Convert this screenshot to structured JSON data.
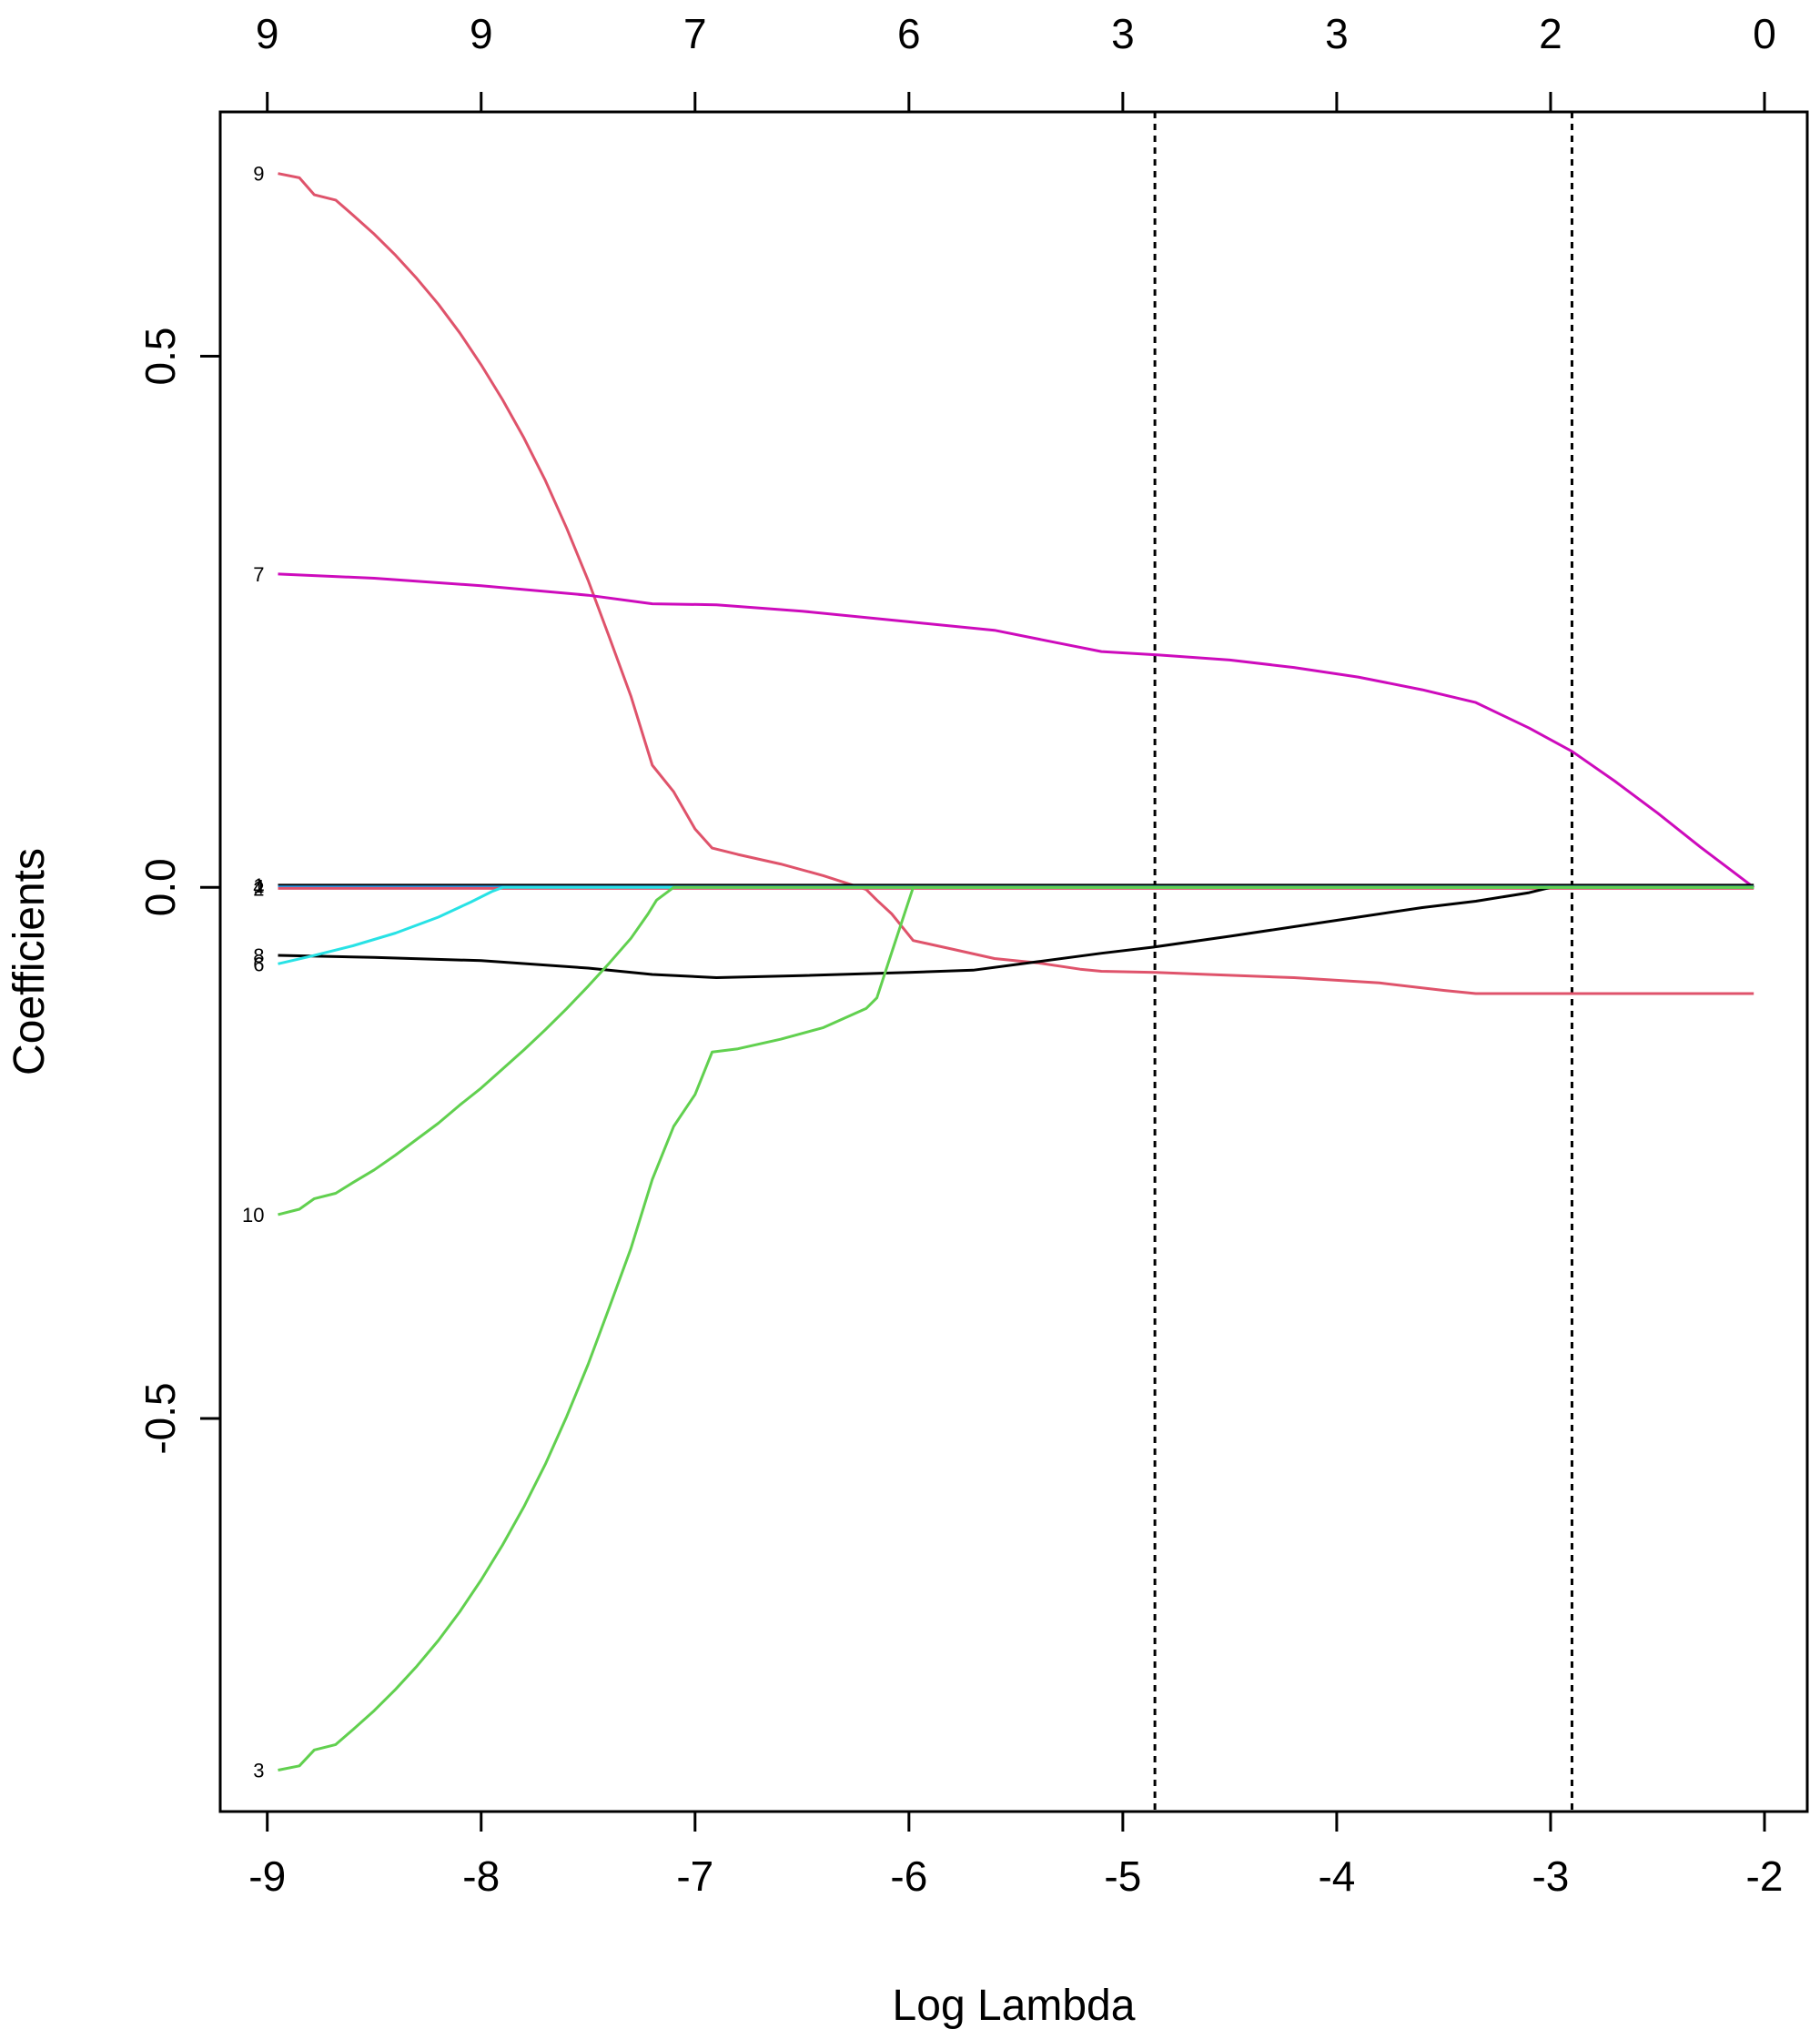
{
  "chart_data": {
    "type": "line",
    "title": "",
    "xlabel": "Log Lambda",
    "ylabel": "Coefficients",
    "xlim": [
      -9.22,
      -1.8
    ],
    "ylim": [
      -0.87,
      0.73
    ],
    "x_ticks": [
      -9,
      -8,
      -7,
      -6,
      -5,
      -4,
      -3,
      -2
    ],
    "x_tick_labels": [
      "-9",
      "-8",
      "-7",
      "-6",
      "-5",
      "-4",
      "-3",
      "-2"
    ],
    "y_ticks": [
      -0.5,
      0.0,
      0.5
    ],
    "y_tick_labels": [
      "-0.5",
      "0.0",
      "0.5"
    ],
    "top_axis": {
      "positions": [
        -9,
        -8,
        -7,
        -6,
        -5,
        -4,
        -3,
        -2
      ],
      "labels": [
        "9",
        "9",
        "7",
        "6",
        "3",
        "3",
        "2",
        "0"
      ]
    },
    "vlines": [
      -4.85,
      -2.9
    ],
    "grid": false,
    "legend": "none",
    "series": [
      {
        "label": "9",
        "color": "#DF536B",
        "x": [
          -8.95,
          -8.85,
          -8.78,
          -8.68,
          -8.6,
          -8.5,
          -8.4,
          -8.3,
          -8.2,
          -8.1,
          -8.0,
          -7.9,
          -7.8,
          -7.7,
          -7.6,
          -7.5,
          -7.4,
          -7.3,
          -7.2,
          -7.1,
          -7.0,
          -6.92,
          -6.8,
          -6.6,
          -6.4,
          -6.2,
          -6.15,
          -6.08,
          -5.98,
          -5.8,
          -5.6,
          -5.4,
          -5.2,
          -5.1,
          -4.85,
          -4.6,
          -4.2,
          -3.8,
          -3.5,
          -3.35,
          -3.0,
          -2.05
        ],
        "y": [
          0.672,
          0.668,
          0.652,
          0.647,
          0.633,
          0.615,
          0.595,
          0.573,
          0.549,
          0.522,
          0.492,
          0.459,
          0.423,
          0.383,
          0.338,
          0.289,
          0.235,
          0.18,
          0.115,
          0.09,
          0.055,
          0.037,
          0.031,
          0.022,
          0.011,
          -0.002,
          -0.012,
          -0.025,
          -0.05,
          -0.058,
          -0.067,
          -0.071,
          -0.077,
          -0.079,
          -0.08,
          -0.082,
          -0.085,
          -0.09,
          -0.097,
          -0.1,
          -0.1,
          -0.1
        ]
      },
      {
        "label": "7",
        "color": "#CD0BBC",
        "x": [
          -8.95,
          -8.5,
          -8.0,
          -7.5,
          -7.2,
          -6.9,
          -6.5,
          -6.0,
          -5.6,
          -5.3,
          -5.1,
          -4.85,
          -4.5,
          -4.2,
          -3.9,
          -3.6,
          -3.35,
          -3.1,
          -2.9,
          -2.7,
          -2.5,
          -2.3,
          -2.05
        ],
        "y": [
          0.295,
          0.291,
          0.284,
          0.275,
          0.267,
          0.266,
          0.26,
          0.25,
          0.242,
          0.23,
          0.222,
          0.219,
          0.214,
          0.207,
          0.198,
          0.186,
          0.174,
          0.15,
          0.128,
          0.1,
          0.07,
          0.038,
          0.0
        ]
      },
      {
        "label": "1",
        "color": "#000000",
        "x": [
          -8.95,
          -2.05
        ],
        "y": [
          0.002,
          0.002
        ]
      },
      {
        "label": "4",
        "color": "#2297E6",
        "x": [
          -8.95,
          -2.05
        ],
        "y": [
          0.0005,
          0.0005
        ]
      },
      {
        "label": "2",
        "color": "#DF536B",
        "x": [
          -8.95,
          -2.05
        ],
        "y": [
          -0.001,
          -0.001
        ]
      },
      {
        "label": "8",
        "color": "#000000",
        "x": [
          -8.95,
          -8.5,
          -8.0,
          -7.5,
          -7.2,
          -6.9,
          -6.5,
          -6.0,
          -5.7,
          -5.4,
          -5.1,
          -4.85,
          -4.5,
          -4.2,
          -3.9,
          -3.6,
          -3.35,
          -3.1,
          -3.0,
          -2.9,
          -2.05
        ],
        "y": [
          -0.064,
          -0.066,
          -0.069,
          -0.076,
          -0.082,
          -0.085,
          -0.083,
          -0.08,
          -0.078,
          -0.07,
          -0.062,
          -0.056,
          -0.046,
          -0.037,
          -0.028,
          -0.019,
          -0.013,
          -0.005,
          0.0,
          0.0,
          0.0
        ]
      },
      {
        "label": "6",
        "color": "#28E2E5",
        "x": [
          -8.95,
          -8.8,
          -8.6,
          -8.4,
          -8.2,
          -8.05,
          -7.95,
          -7.9,
          -7.2,
          -2.05
        ],
        "y": [
          -0.072,
          -0.065,
          -0.055,
          -0.043,
          -0.028,
          -0.014,
          -0.004,
          0.0,
          0.0,
          0.0
        ]
      },
      {
        "label": "10",
        "color": "#61D04F",
        "x": [
          -8.95,
          -8.85,
          -8.78,
          -8.68,
          -8.6,
          -8.5,
          -8.4,
          -8.3,
          -8.2,
          -8.1,
          -8.0,
          -7.9,
          -7.8,
          -7.7,
          -7.6,
          -7.5,
          -7.4,
          -7.3,
          -7.22,
          -7.18,
          -7.1,
          -2.05
        ],
        "y": [
          -0.308,
          -0.303,
          -0.293,
          -0.288,
          -0.278,
          -0.266,
          -0.252,
          -0.237,
          -0.222,
          -0.205,
          -0.189,
          -0.171,
          -0.153,
          -0.134,
          -0.114,
          -0.093,
          -0.071,
          -0.048,
          -0.025,
          -0.012,
          0.0,
          0.0
        ]
      },
      {
        "label": "3",
        "color": "#61D04F",
        "x": [
          -8.95,
          -8.85,
          -8.78,
          -8.68,
          -8.6,
          -8.5,
          -8.4,
          -8.3,
          -8.2,
          -8.1,
          -8.0,
          -7.9,
          -7.8,
          -7.7,
          -7.6,
          -7.5,
          -7.4,
          -7.3,
          -7.2,
          -7.1,
          -7.0,
          -6.92,
          -6.8,
          -6.6,
          -6.4,
          -6.2,
          -6.15,
          -6.08,
          -5.98,
          -5.8,
          -5.6,
          -5.4,
          -5.2,
          -5.1,
          -4.85,
          -4.6,
          -4.2,
          -3.8,
          -3.5,
          -3.35,
          -3.0,
          -2.05
        ],
        "y": [
          -0.831,
          -0.827,
          -0.812,
          -0.807,
          -0.793,
          -0.775,
          -0.755,
          -0.733,
          -0.709,
          -0.682,
          -0.652,
          -0.619,
          -0.583,
          -0.543,
          -0.498,
          -0.449,
          -0.395,
          -0.34,
          -0.275,
          -0.225,
          -0.195,
          -0.155,
          -0.152,
          -0.143,
          -0.132,
          -0.114,
          -0.104,
          -0.061,
          -0.0,
          -0.0,
          -0.0,
          -0.0,
          -0.0,
          -0.0,
          -0.0,
          -0.0,
          -0.0,
          -0.0,
          -0.0,
          -0.0,
          -0.0,
          -0.0
        ]
      }
    ]
  }
}
